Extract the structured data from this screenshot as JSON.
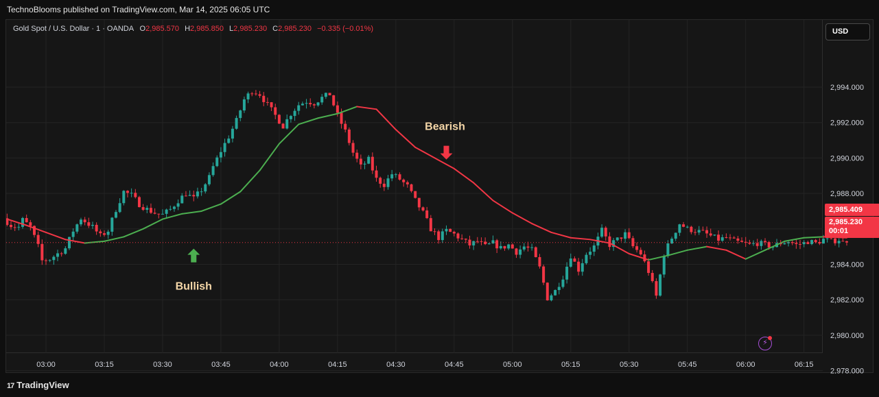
{
  "header": {
    "publisher": "TechnoBlooms published on TradingView.com, Mar 14, 2025 06:05 UTC"
  },
  "legend": {
    "symbol": "Gold Spot / U.S. Dollar · 1 · OANDA",
    "open_label": "O",
    "open": "2,985.570",
    "high_label": "H",
    "high": "2,985.850",
    "low_label": "L",
    "low": "2,985.230",
    "close_label": "C",
    "close": "2,985.230",
    "change": "−0.335 (−0.01%)"
  },
  "currency_button": "USD",
  "price_tags": {
    "high": "2,985.409",
    "last": "2,985.230",
    "countdown": "00:01"
  },
  "footer": {
    "logo_mark": "17",
    "logo_text": "TradingView"
  },
  "colors": {
    "up": "#26a69a",
    "down": "#f23645",
    "ma_up": "#4caf50",
    "ma_down": "#f23645",
    "arrow_up": "#4caf50",
    "arrow_down": "#f23645",
    "annotation_text": "#f5d7a8"
  },
  "icons": {
    "alert": "lightning-icon"
  },
  "chart_data": {
    "type": "candlestick",
    "title": "",
    "xlabel": "",
    "ylabel": "",
    "ylim": [
      2977.2,
      2996.8
    ],
    "y_ticks": [
      2994,
      2992,
      2990,
      2988,
      2986,
      2984,
      2982,
      2980,
      2978
    ],
    "y_tick_labels": [
      "2,994.000",
      "2,992.000",
      "2,990.000",
      "2,988.000",
      "2,986.000",
      "2,984.000",
      "2,982.000",
      "2,980.000",
      "2,978.000"
    ],
    "x_tick_labels": [
      "03:00",
      "03:15",
      "03:30",
      "03:45",
      "04:00",
      "04:15",
      "04:30",
      "04:45",
      "05:00",
      "05:15",
      "05:30",
      "05:45",
      "06:00",
      "06:15"
    ],
    "x_start_minute": 0,
    "bar_interval_minutes": 1,
    "grid": true,
    "last_price": 2985.23,
    "path_minutes": [
      -10,
      -8,
      -6,
      -5,
      -3,
      -1,
      0,
      2,
      4,
      6,
      8,
      10,
      13,
      15,
      17,
      19,
      21,
      23,
      25,
      27,
      29,
      31,
      33,
      35,
      37,
      39,
      41,
      43,
      44,
      46,
      48,
      50,
      52,
      54,
      56,
      58,
      60,
      62,
      64,
      66,
      68,
      70,
      72,
      74,
      76,
      78,
      80,
      82,
      84,
      86,
      88,
      90,
      92,
      94,
      96,
      98,
      100,
      102,
      104,
      106,
      108,
      110,
      112,
      114,
      116,
      118,
      120,
      122,
      124,
      126,
      128,
      130,
      132,
      134,
      136,
      138,
      140,
      142,
      144,
      146,
      148,
      150,
      152,
      154,
      156,
      158,
      160,
      162,
      164,
      166,
      168,
      170,
      172,
      174,
      176,
      178,
      180,
      182,
      184,
      186,
      188,
      190,
      192,
      194,
      196,
      197,
      199,
      201,
      203,
      205,
      206
    ],
    "path_prices": [
      2986.6,
      2986.2,
      2986.1,
      2986.5,
      2986.1,
      2985.0,
      2984.2,
      2984.3,
      2984.6,
      2984.9,
      2985.9,
      2986.6,
      2986.1,
      2985.6,
      2985.9,
      2987.1,
      2988.1,
      2987.9,
      2987.4,
      2987.1,
      2986.9,
      2986.8,
      2987.1,
      2987.6,
      2988.0,
      2987.7,
      2988.2,
      2988.9,
      2989.5,
      2990.4,
      2991.2,
      2992.1,
      2993.3,
      2993.8,
      2993.6,
      2993.0,
      2992.4,
      2991.8,
      2992.5,
      2993.0,
      2993.2,
      2993.1,
      2993.4,
      2993.6,
      2992.4,
      2991.5,
      2990.3,
      2989.5,
      2989.9,
      2988.8,
      2988.5,
      2989.1,
      2988.8,
      2988.4,
      2987.6,
      2986.9,
      2986.0,
      2985.5,
      2985.9,
      2985.7,
      2985.4,
      2985.1,
      2985.3,
      2985.0,
      2985.2,
      2984.9,
      2985.1,
      2984.7,
      2985.0,
      2984.8,
      2983.8,
      2982.1,
      2982.5,
      2983.3,
      2984.5,
      2983.7,
      2984.6,
      2985.0,
      2985.9,
      2985.1,
      2985.4,
      2985.7,
      2985.0,
      2984.6,
      2983.6,
      2982.2,
      2984.6,
      2985.5,
      2986.3,
      2986.0,
      2985.9,
      2985.8,
      2985.6,
      2985.4,
      2985.5,
      2985.3,
      2985.2,
      2985.1,
      2985.2,
      2985.1,
      2985.0,
      2985.2,
      2985.3,
      2985.1,
      2985.2,
      2985.3,
      2985.2,
      2985.4,
      2985.3,
      2985.4,
      2985.23
    ],
    "ma_minutes": [
      -10,
      -5,
      0,
      5,
      10,
      15,
      20,
      25,
      30,
      35,
      40,
      45,
      50,
      55,
      60,
      65,
      70,
      75,
      80,
      85,
      90,
      95,
      100,
      105,
      110,
      115,
      120,
      125,
      130,
      135,
      140,
      145,
      150,
      155,
      160,
      165,
      170,
      175,
      180,
      185,
      190,
      195,
      200,
      206
    ],
    "ma_values": [
      2986.55,
      2986.2,
      2985.8,
      2985.4,
      2985.2,
      2985.3,
      2985.55,
      2986.0,
      2986.55,
      2986.85,
      2987.0,
      2987.4,
      2988.1,
      2989.3,
      2990.8,
      2991.9,
      2992.25,
      2992.5,
      2992.9,
      2992.75,
      2991.6,
      2990.6,
      2990.0,
      2989.4,
      2988.6,
      2987.6,
      2986.9,
      2986.3,
      2985.8,
      2985.5,
      2985.4,
      2985.2,
      2984.6,
      2984.25,
      2984.5,
      2984.8,
      2985.0,
      2984.8,
      2984.3,
      2984.8,
      2985.3,
      2985.5,
      2985.55,
      2985.5
    ],
    "annotations": [
      {
        "text": "Bullish",
        "arrow": "up",
        "minute": 38,
        "price": 2984.5
      },
      {
        "text": "Bearish",
        "arrow": "down",
        "minute": 103,
        "price": 2990.3
      }
    ]
  }
}
